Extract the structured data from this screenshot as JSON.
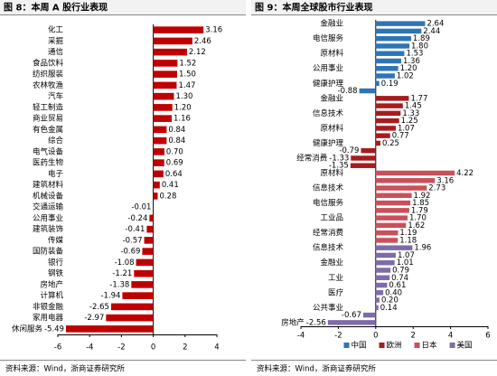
{
  "chart_data": [
    {
      "type": "bar",
      "orientation": "horizontal",
      "title": "图 8：本周 A 股行业表现",
      "categories": [
        "化工",
        "采掘",
        "通信",
        "食品饮料",
        "纺织服装",
        "农林牧渔",
        "汽车",
        "轻工制造",
        "商业贸易",
        "有色金属",
        "综合",
        "电气设备",
        "医药生物",
        "电子",
        "建筑材料",
        "机械设备",
        "交通运输",
        "公用事业",
        "建筑装饰",
        "传媒",
        "国防装备",
        "银行",
        "钢铁",
        "房地产",
        "计算机",
        "非银金融",
        "家用电器",
        "休闲服务"
      ],
      "values": [
        3.16,
        2.46,
        2.12,
        1.52,
        1.5,
        1.47,
        1.3,
        1.2,
        1.16,
        0.84,
        0.84,
        0.7,
        0.69,
        0.64,
        0.41,
        0.28,
        -0.01,
        -0.24,
        -0.41,
        -0.57,
        -0.69,
        -1.08,
        -1.21,
        -1.38,
        -1.94,
        -2.65,
        -2.97,
        -5.49
      ],
      "value_labels": [
        "3.16",
        "2.46",
        "2.12",
        "1.52",
        "1.50",
        "1.47",
        "1.30",
        "1.20",
        "1.16",
        "0.84",
        "0.84",
        "0.70",
        "0.69",
        "0.64",
        "0.41",
        "0.28",
        "-0.01",
        "-0.24",
        "-0.41",
        "-0.57",
        "-0.69",
        "-1.08",
        "-1.21",
        "-1.38",
        "-1.94",
        "-2.65",
        "-2.97",
        "-5.49"
      ],
      "color": "#c00000",
      "xlim": [
        -6,
        4
      ],
      "xticks": [
        -6,
        -4,
        -2,
        0,
        2,
        4
      ],
      "source": "资料来源：Wind，浙商证券研究所"
    },
    {
      "type": "bar",
      "orientation": "horizontal",
      "title": "图 9：本周全球股市行业表现",
      "categories": [
        "金融业",
        null,
        "电信服务",
        null,
        "原材料",
        null,
        "公用事业",
        null,
        "健康护理",
        null,
        "金融业",
        null,
        "信息技术",
        null,
        "原材料",
        null,
        "健康护理",
        null,
        "经常消费",
        null,
        "原材料",
        null,
        "信息技术",
        null,
        "电信服务",
        null,
        "工业品",
        null,
        "经常消费",
        null,
        "信息技术",
        null,
        "金融业",
        null,
        "工业",
        null,
        "医疗",
        null,
        "公共事业",
        null,
        "房地产"
      ],
      "series": [
        {
          "name": "中国",
          "color": "#2e75b6",
          "values": [
            2.64,
            2.44,
            1.89,
            1.8,
            1.53,
            1.36,
            1.2,
            1.02,
            0.19,
            -0.88,
            null,
            null,
            null,
            null,
            null,
            null,
            null,
            null,
            null,
            null,
            null,
            null,
            null,
            null,
            null,
            null,
            null,
            null,
            null,
            null,
            null,
            null,
            null,
            null,
            null,
            null,
            null,
            null,
            null,
            null,
            null
          ],
          "value_labels": [
            "2.64",
            "2.44",
            "1.89",
            "1.80",
            "1.53",
            "1.36",
            "1.20",
            "1.02",
            "0.19",
            "-0.88",
            null,
            null,
            null,
            null,
            null,
            null,
            null,
            null,
            null,
            null,
            null,
            null,
            null,
            null,
            null,
            null,
            null,
            null,
            null,
            null,
            null,
            null,
            null,
            null,
            null,
            null,
            null,
            null,
            null,
            null,
            null
          ]
        },
        {
          "name": "欧洲",
          "color": "#a61c1c",
          "values": [
            null,
            null,
            null,
            null,
            null,
            null,
            null,
            null,
            null,
            null,
            1.77,
            1.45,
            1.33,
            1.25,
            1.07,
            0.77,
            0.25,
            -0.79,
            -1.33,
            -1.35,
            null,
            null,
            null,
            null,
            null,
            null,
            null,
            null,
            null,
            null,
            null,
            null,
            null,
            null,
            null,
            null,
            null,
            null,
            null,
            null,
            null
          ],
          "value_labels": [
            null,
            null,
            null,
            null,
            null,
            null,
            null,
            null,
            null,
            null,
            "1.77",
            "1.45",
            "1.33",
            "1.25",
            "1.07",
            "0.77",
            "0.25",
            "-0.79",
            "-1.33",
            "-1.35",
            null,
            null,
            null,
            null,
            null,
            null,
            null,
            null,
            null,
            null,
            null,
            null,
            null,
            null,
            null,
            null,
            null,
            null,
            null,
            null,
            null
          ]
        },
        {
          "name": "日本",
          "color": "#c9505a",
          "values": [
            null,
            null,
            null,
            null,
            null,
            null,
            null,
            null,
            null,
            null,
            null,
            null,
            null,
            null,
            null,
            null,
            null,
            null,
            null,
            null,
            4.22,
            3.16,
            2.73,
            1.92,
            1.85,
            1.79,
            1.7,
            1.62,
            1.19,
            1.18,
            null,
            null,
            null,
            null,
            null,
            null,
            null,
            null,
            null,
            null,
            null
          ],
          "value_labels": [
            null,
            null,
            null,
            null,
            null,
            null,
            null,
            null,
            null,
            null,
            null,
            null,
            null,
            null,
            null,
            null,
            null,
            null,
            null,
            null,
            "4.22",
            "3.16",
            "2.73",
            "1.92",
            "1.85",
            "1.79",
            "1.70",
            "1.62",
            "1.19",
            "1.18",
            null,
            null,
            null,
            null,
            null,
            null,
            null,
            null,
            null,
            null,
            null
          ]
        },
        {
          "name": "美国",
          "color": "#7e6ba8",
          "values": [
            null,
            null,
            null,
            null,
            null,
            null,
            null,
            null,
            null,
            null,
            null,
            null,
            null,
            null,
            null,
            null,
            null,
            null,
            null,
            null,
            null,
            null,
            null,
            null,
            null,
            null,
            null,
            null,
            null,
            null,
            1.96,
            1.07,
            1.01,
            0.79,
            0.74,
            0.61,
            0.4,
            0.2,
            0.14,
            -0.67,
            -2.56
          ],
          "value_labels": [
            null,
            null,
            null,
            null,
            null,
            null,
            null,
            null,
            null,
            null,
            null,
            null,
            null,
            null,
            null,
            null,
            null,
            null,
            null,
            null,
            null,
            null,
            null,
            null,
            null,
            null,
            null,
            null,
            null,
            null,
            "1.96",
            "1.07",
            "1.01",
            "0.79",
            "0.74",
            "0.61",
            "0.40",
            "0.20",
            "0.14",
            "-0.67",
            "-2.56"
          ]
        }
      ],
      "xlim": [
        -4,
        6
      ],
      "xticks": [
        -4,
        -2,
        0,
        2,
        4,
        6
      ],
      "legend": "bottom",
      "source": "资料来源：Wind，浙商证券研究所"
    }
  ]
}
